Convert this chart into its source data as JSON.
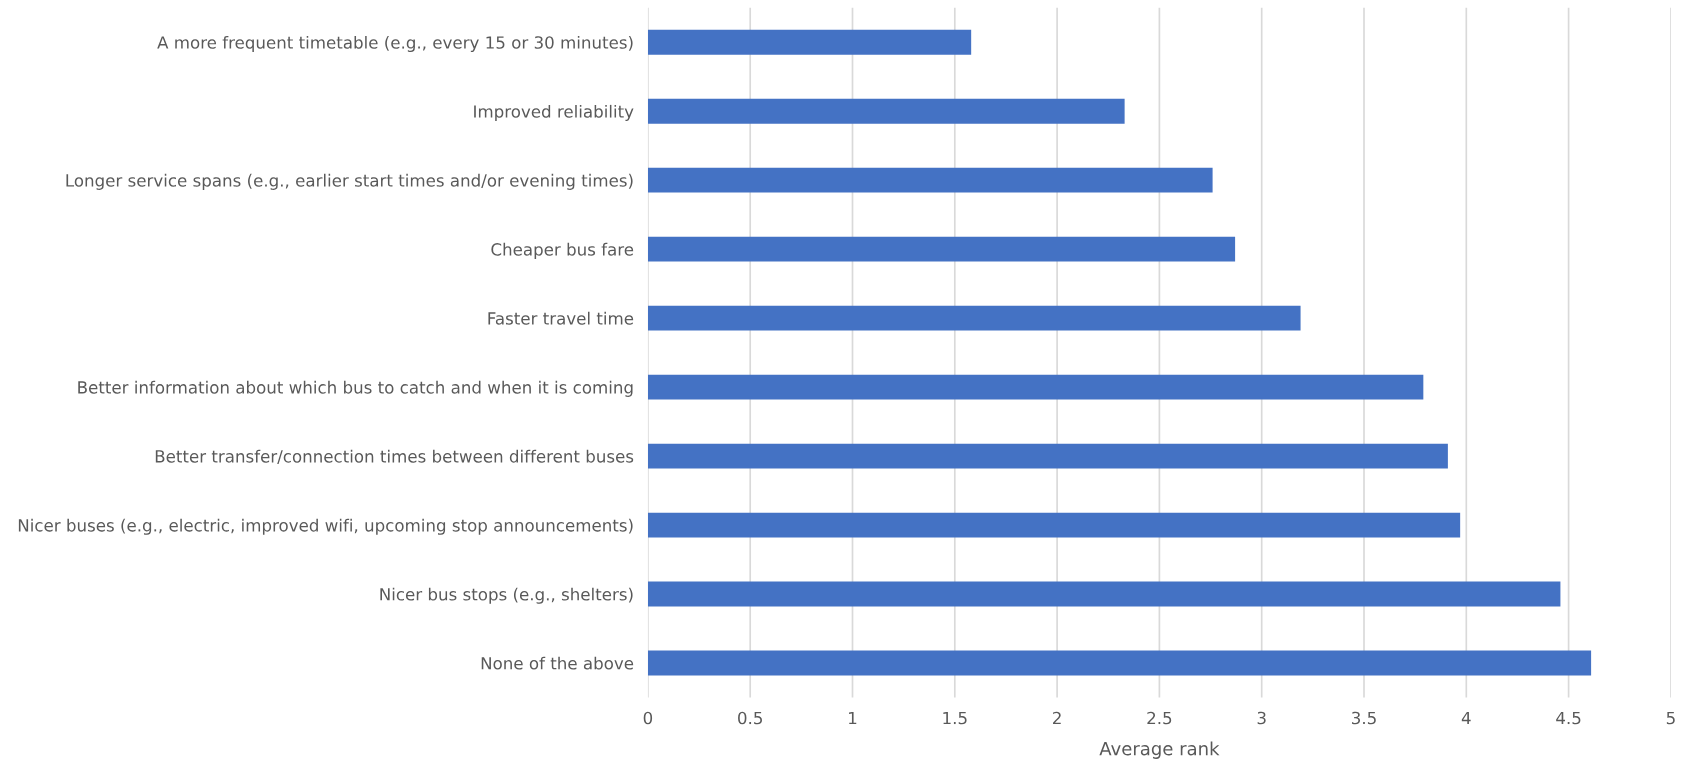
{
  "chart_data": {
    "type": "bar",
    "orientation": "horizontal",
    "xlabel": "Average rank",
    "categories": [
      "A more frequent timetable (e.g., every 15 or 30 minutes)",
      "Improved reliability",
      "Longer service spans (e.g., earlier start times and/or evening times)",
      "Cheaper bus fare",
      "Faster travel time",
      "Better information about which bus to catch and when it is coming",
      "Better transfer/connection times between different buses",
      "Nicer buses (e.g., electric, improved wifi, upcoming stop announcements)",
      "Nicer bus stops (e.g., shelters)",
      "None of the above"
    ],
    "values": [
      1.58,
      2.33,
      2.76,
      2.87,
      3.19,
      3.79,
      3.91,
      3.97,
      4.46,
      4.61
    ],
    "color": "#4472c4",
    "xlim": [
      0,
      5
    ],
    "xticks": [
      0,
      0.5,
      1,
      1.5,
      2,
      2.5,
      3,
      3.5,
      4,
      4.5,
      5
    ],
    "grid": "x"
  }
}
